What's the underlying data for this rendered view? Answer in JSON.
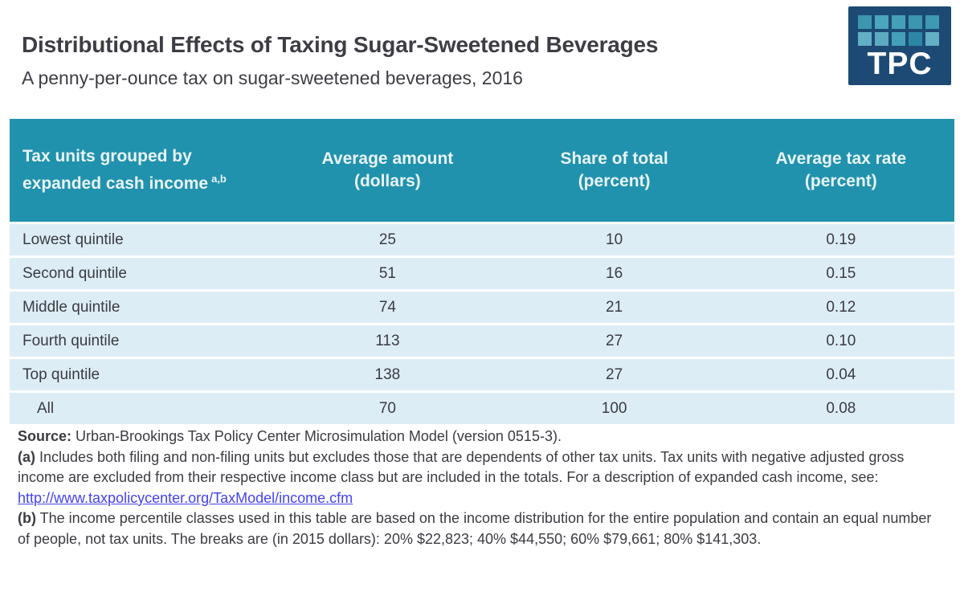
{
  "page": {
    "title": "Distributional Effects of Taxing Sugar-Sweetened Beverages",
    "subtitle": "A penny-per-ounce tax on sugar-sweetened beverages, 2016"
  },
  "logo": {
    "text": "TPC"
  },
  "table": {
    "columns": {
      "col1": {
        "line1": "Tax units grouped by",
        "line2": "expanded cash income",
        "sup": "a,b"
      },
      "col2": {
        "line1": "Average amount",
        "line2": "(dollars)"
      },
      "col3": {
        "line1": "Share of total",
        "line2": "(percent)"
      },
      "col4": {
        "line1": "Average tax rate",
        "line2": "(percent)"
      }
    },
    "rows": [
      {
        "label": "Lowest quintile",
        "amount": "25",
        "share": "10",
        "rate": "0.19"
      },
      {
        "label": "Second quintile",
        "amount": "51",
        "share": "16",
        "rate": "0.15"
      },
      {
        "label": "Middle quintile",
        "amount": "74",
        "share": "21",
        "rate": "0.12"
      },
      {
        "label": "Fourth quintile",
        "amount": "113",
        "share": "27",
        "rate": "0.10"
      },
      {
        "label": "Top quintile",
        "amount": "138",
        "share": "27",
        "rate": "0.04"
      },
      {
        "label": "All",
        "amount": "70",
        "share": "100",
        "rate": "0.08"
      }
    ]
  },
  "footnotes": {
    "source_label": "Source:",
    "source_text": " Urban-Brookings Tax Policy Center Microsimulation Model (version 0515-3).",
    "a_label": "(a)",
    "a_text": " Includes both filing and non-filing units but excludes those that are dependents of other tax units. Tax units with negative adjusted gross income are excluded from their respective income class but are included in the totals. For a description of expanded cash income, see: ",
    "a_link": "http://www.taxpolicycenter.org/TaxModel/income.cfm",
    "b_label": "(b)",
    "b_text": " The income percentile classes used in this table are based on the income distribution for the entire population and contain an equal number of people, not tax units. The breaks are (in 2015 dollars): 20% $22,823; 40% $44,550; 60% $79,661; 80% $141,303."
  },
  "colors": {
    "header_teal": "#2192ad",
    "row_blue": "#ddedf6",
    "logo_navy": "#1c4a74",
    "link_blue": "#4343ee",
    "text_dark": "#3b3b42"
  },
  "chart_data": {
    "type": "table",
    "title": "Distributional Effects of Taxing Sugar-Sweetened Beverages",
    "subtitle": "A penny-per-ounce tax on sugar-sweetened beverages, 2016",
    "columns": [
      "Tax units grouped by expanded cash income",
      "Average amount (dollars)",
      "Share of total (percent)",
      "Average tax rate (percent)"
    ],
    "rows": [
      [
        "Lowest quintile",
        25,
        10,
        0.19
      ],
      [
        "Second quintile",
        51,
        16,
        0.15
      ],
      [
        "Middle quintile",
        74,
        21,
        0.12
      ],
      [
        "Fourth quintile",
        113,
        27,
        0.1
      ],
      [
        "Top quintile",
        138,
        27,
        0.04
      ],
      [
        "All",
        70,
        100,
        0.08
      ]
    ]
  }
}
